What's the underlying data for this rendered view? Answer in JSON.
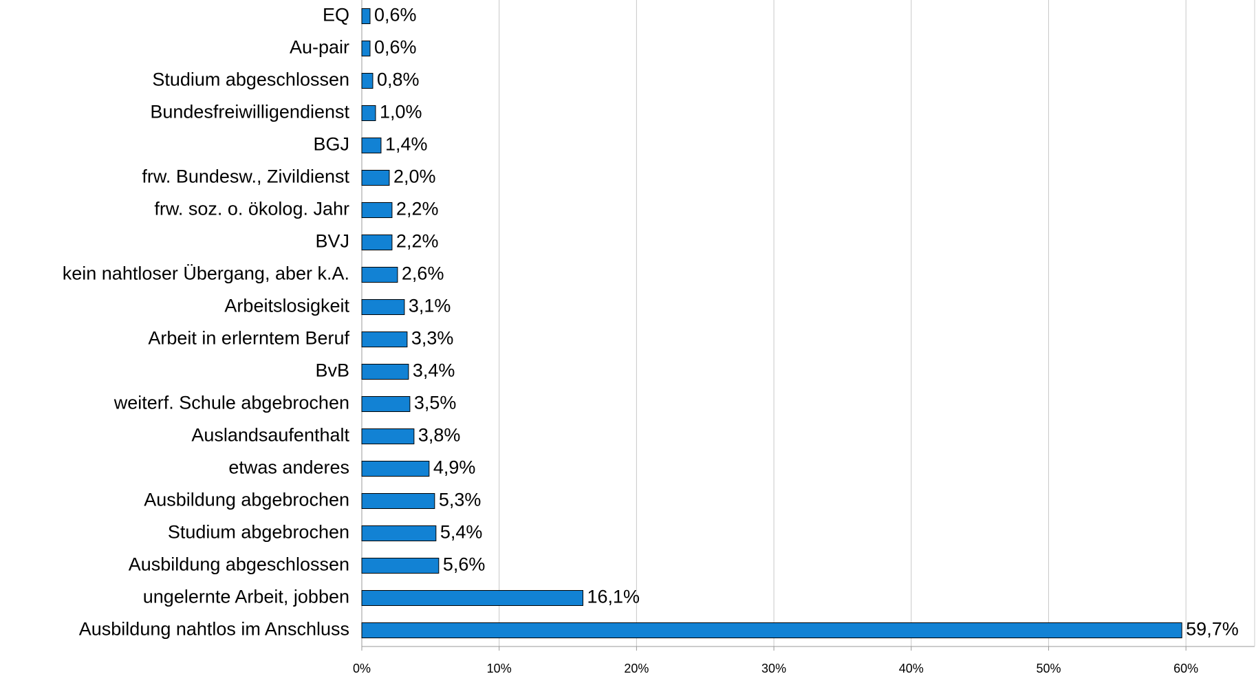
{
  "chart_data": {
    "type": "barh",
    "categories": [
      "EQ",
      "Au-pair",
      "Studium abgeschlossen",
      "Bundesfreiwilligendienst",
      "BGJ",
      "frw. Bundesw., Zivildienst",
      "frw. soz. o. ökolog. Jahr",
      "BVJ",
      "kein nahtloser Übergang, aber k.A.",
      "Arbeitslosigkeit",
      "Arbeit in erlerntem Beruf",
      "BvB",
      "weiterf. Schule abgebrochen",
      "Auslandsaufenthalt",
      "etwas anderes",
      "Ausbildung abgebrochen",
      "Studium abgebrochen",
      "Ausbildung abgeschlossen",
      "ungelernte Arbeit, jobben",
      "Ausbildung nahtlos im Anschluss"
    ],
    "values": [
      0.6,
      0.6,
      0.8,
      1.0,
      1.4,
      2.0,
      2.2,
      2.2,
      2.6,
      3.1,
      3.3,
      3.4,
      3.5,
      3.8,
      4.9,
      5.3,
      5.4,
      5.6,
      16.1,
      59.7
    ],
    "value_labels": [
      "0,6%",
      "0,6%",
      "0,8%",
      "1,0%",
      "1,4%",
      "2,0%",
      "2,2%",
      "2,2%",
      "2,6%",
      "3,1%",
      "3,3%",
      "3,4%",
      "3,5%",
      "3,8%",
      "4,9%",
      "5,3%",
      "5,4%",
      "5,6%",
      "16,1%",
      "59,7%"
    ],
    "color": "#1282d4",
    "xlim": [
      0,
      65
    ],
    "xticks": [
      {
        "value": 0,
        "label": "0%"
      },
      {
        "value": 10,
        "label": "10%"
      },
      {
        "value": 20,
        "label": "20%"
      },
      {
        "value": 30,
        "label": "30%"
      },
      {
        "value": 40,
        "label": "40%"
      },
      {
        "value": 50,
        "label": "50%"
      },
      {
        "value": 60,
        "label": "60%"
      }
    ],
    "grid": true
  }
}
